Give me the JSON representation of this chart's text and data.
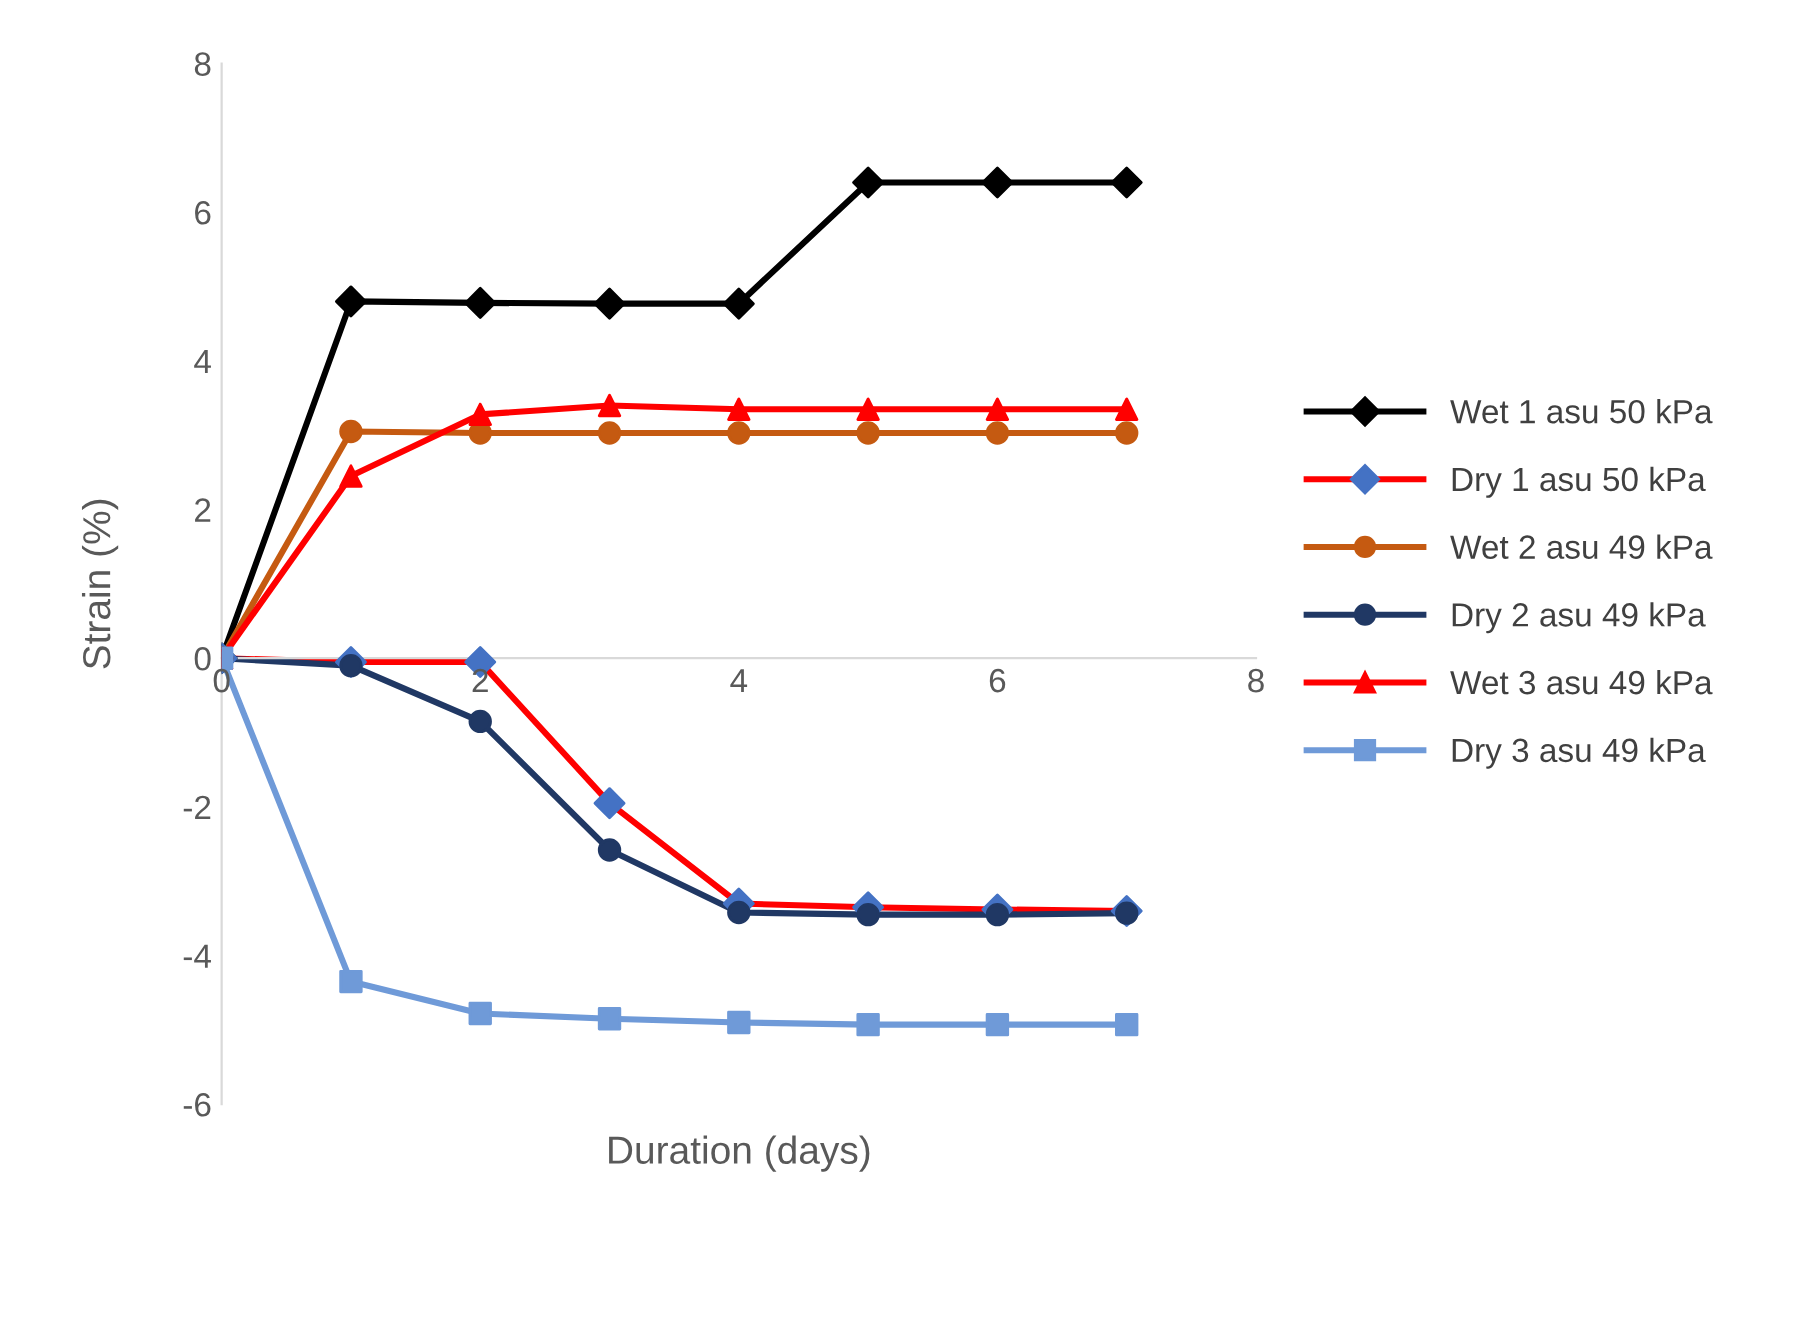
{
  "chart_data": {
    "type": "line",
    "xlabel": "Duration (days)",
    "ylabel": "Strain (%)",
    "x": [
      0,
      1,
      2,
      3,
      4,
      5,
      6,
      7
    ],
    "series": [
      {
        "name": "Wet 1 asu 50 kPa",
        "color": "#000000",
        "marker": "diamond",
        "values": [
          0,
          4.8,
          4.78,
          4.77,
          4.77,
          6.4,
          6.4,
          6.4
        ]
      },
      {
        "name": "Dry 1 asu 50 kPa",
        "color": "#ff0000",
        "colors": [
          "#4472c4",
          "#4472c4",
          "#4472c4",
          "#4472c4",
          "#4472c4",
          "#4472c4",
          "#4472c4",
          "#4472c4"
        ],
        "marker": "diamond",
        "values": [
          0,
          -0.05,
          -0.05,
          -1.95,
          -3.3,
          -3.35,
          -3.38,
          -3.4
        ]
      },
      {
        "name": "Wet 2 asu 49 kPa",
        "color": "#c55a11",
        "marker": "circle",
        "values": [
          0,
          3.05,
          3.03,
          3.03,
          3.03,
          3.03,
          3.03,
          3.03
        ]
      },
      {
        "name": "Dry 2 asu 49 kPa",
        "color": "#203864",
        "marker": "circle",
        "values": [
          0,
          -0.1,
          -0.85,
          -2.58,
          -3.42,
          -3.45,
          -3.45,
          -3.43
        ]
      },
      {
        "name": "Wet 3 asu 49 kPa",
        "color": "#ff0000",
        "marker": "triangle",
        "values": [
          0,
          2.45,
          3.28,
          3.4,
          3.35,
          3.35,
          3.35,
          3.35
        ]
      },
      {
        "name": "Dry 3 asu 49 kPa",
        "color": "#6f9ad8",
        "marker": "square",
        "values": [
          0,
          -4.35,
          -4.78,
          -4.85,
          -4.9,
          -4.93,
          -4.93,
          -4.93
        ]
      }
    ],
    "xlim": [
      0,
      8
    ],
    "xticks": [
      0,
      2,
      4,
      6,
      8
    ],
    "ylim": [
      -6,
      8
    ],
    "yticks": [
      -6,
      -4,
      -2,
      0,
      2,
      4,
      6,
      8
    ],
    "grid": false,
    "legend": "right",
    "line_style": "solid"
  }
}
